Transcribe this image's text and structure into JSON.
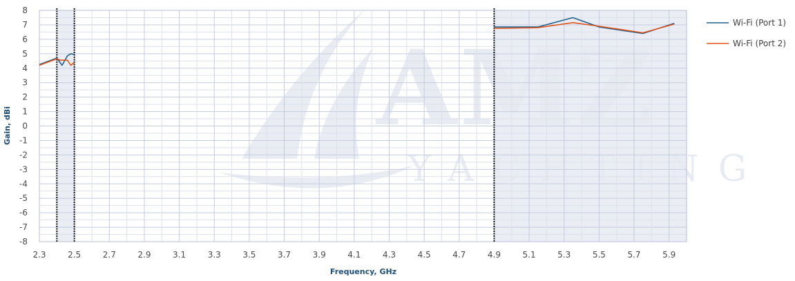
{
  "chart_data": {
    "type": "line",
    "title": "",
    "xlabel": "Frequency, GHz",
    "ylabel": "Gain, dBi",
    "xlim": [
      2.3,
      6.0
    ],
    "ylim": [
      -8,
      8
    ],
    "x_ticks": [
      "2.3",
      "2.5",
      "2.7",
      "2.9",
      "3.1",
      "3.3",
      "3.5",
      "3.7",
      "3.9",
      "4.1",
      "4.3",
      "4.5",
      "4.7",
      "4.9",
      "5.1",
      "5.3",
      "5.5",
      "5.7",
      "5.9"
    ],
    "y_ticks": [
      "8",
      "7",
      "6",
      "5",
      "4",
      "3",
      "2",
      "1",
      "0",
      "-1",
      "-2",
      "-3",
      "-4",
      "-5",
      "-6",
      "-7",
      "-8"
    ],
    "grid": true,
    "legend_position": "right",
    "shaded_bands": [
      [
        2.4,
        2.5
      ],
      [
        4.9,
        6.0
      ]
    ],
    "band_color": "#e8eaf2",
    "series": [
      {
        "name": "Wi-Fi (Port 1)",
        "color": "#1f5f8b",
        "segments": [
          [
            [
              2.3,
              4.25
            ],
            [
              2.4,
              4.7
            ],
            [
              2.43,
              4.2
            ],
            [
              2.46,
              4.85
            ],
            [
              2.48,
              5.0
            ],
            [
              2.5,
              4.95
            ]
          ],
          [
            [
              4.9,
              6.85
            ],
            [
              5.15,
              6.85
            ],
            [
              5.35,
              7.5
            ],
            [
              5.5,
              6.85
            ],
            [
              5.75,
              6.4
            ],
            [
              5.93,
              7.1
            ]
          ]
        ]
      },
      {
        "name": "Wi-Fi (Port 2)",
        "color": "#e0541c",
        "segments": [
          [
            [
              2.3,
              4.2
            ],
            [
              2.4,
              4.65
            ],
            [
              2.42,
              4.55
            ],
            [
              2.46,
              4.55
            ],
            [
              2.48,
              4.2
            ],
            [
              2.5,
              4.4
            ]
          ],
          [
            [
              4.9,
              6.75
            ],
            [
              5.15,
              6.8
            ],
            [
              5.35,
              7.15
            ],
            [
              5.5,
              6.9
            ],
            [
              5.75,
              6.45
            ],
            [
              5.93,
              7.05
            ]
          ]
        ]
      }
    ],
    "watermark": {
      "line1": "AMZ",
      "line2": "YACHTING"
    }
  }
}
